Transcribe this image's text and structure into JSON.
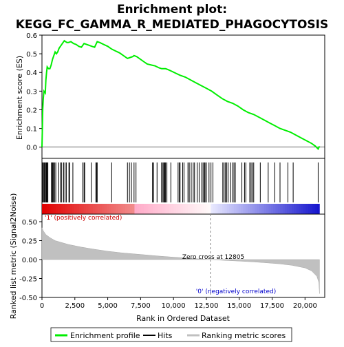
{
  "chart_data": {
    "type": "line",
    "title_line1": "Enrichment plot:",
    "title_line2": "KEGG_FC_GAMMA_R_MEDIATED_PHAGOCYTOSIS",
    "top_panel": {
      "ylabel": "Enrichment score (ES)",
      "ylim": [
        -0.06,
        0.6
      ],
      "yticks": [
        "0.0",
        "0.1",
        "0.2",
        "0.3",
        "0.4",
        "0.5",
        "0.6"
      ],
      "series_name": "Enrichment profile",
      "color": "#00ee00",
      "points": [
        [
          0,
          0.0
        ],
        [
          30,
          0.1
        ],
        [
          60,
          0.2
        ],
        [
          100,
          0.26
        ],
        [
          150,
          0.3
        ],
        [
          250,
          0.29
        ],
        [
          300,
          0.36
        ],
        [
          350,
          0.4
        ],
        [
          400,
          0.43
        ],
        [
          500,
          0.42
        ],
        [
          600,
          0.42
        ],
        [
          700,
          0.44
        ],
        [
          800,
          0.47
        ],
        [
          900,
          0.49
        ],
        [
          1000,
          0.51
        ],
        [
          1100,
          0.5
        ],
        [
          1200,
          0.51
        ],
        [
          1300,
          0.53
        ],
        [
          1400,
          0.54
        ],
        [
          1500,
          0.55
        ],
        [
          1600,
          0.56
        ],
        [
          1700,
          0.57
        ],
        [
          1800,
          0.565
        ],
        [
          1900,
          0.56
        ],
        [
          2000,
          0.56
        ],
        [
          2200,
          0.565
        ],
        [
          2400,
          0.555
        ],
        [
          2600,
          0.55
        ],
        [
          2800,
          0.54
        ],
        [
          3000,
          0.535
        ],
        [
          3200,
          0.555
        ],
        [
          3400,
          0.55
        ],
        [
          3600,
          0.545
        ],
        [
          3800,
          0.54
        ],
        [
          4000,
          0.535
        ],
        [
          4200,
          0.565
        ],
        [
          4400,
          0.56
        ],
        [
          4700,
          0.55
        ],
        [
          5000,
          0.54
        ],
        [
          5300,
          0.525
        ],
        [
          5600,
          0.515
        ],
        [
          5900,
          0.505
        ],
        [
          6200,
          0.49
        ],
        [
          6500,
          0.475
        ],
        [
          6700,
          0.48
        ],
        [
          6900,
          0.485
        ],
        [
          7000,
          0.49
        ],
        [
          7200,
          0.485
        ],
        [
          7400,
          0.475
        ],
        [
          7700,
          0.46
        ],
        [
          8000,
          0.445
        ],
        [
          8300,
          0.44
        ],
        [
          8600,
          0.435
        ],
        [
          8900,
          0.425
        ],
        [
          9100,
          0.42
        ],
        [
          9400,
          0.42
        ],
        [
          9600,
          0.415
        ],
        [
          9900,
          0.405
        ],
        [
          10200,
          0.395
        ],
        [
          10500,
          0.385
        ],
        [
          10900,
          0.375
        ],
        [
          11300,
          0.36
        ],
        [
          11700,
          0.345
        ],
        [
          12100,
          0.33
        ],
        [
          12500,
          0.315
        ],
        [
          12900,
          0.3
        ],
        [
          13300,
          0.28
        ],
        [
          13700,
          0.26
        ],
        [
          14100,
          0.245
        ],
        [
          14500,
          0.235
        ],
        [
          14900,
          0.22
        ],
        [
          15300,
          0.2
        ],
        [
          15700,
          0.185
        ],
        [
          16100,
          0.175
        ],
        [
          16500,
          0.16
        ],
        [
          16900,
          0.145
        ],
        [
          17300,
          0.13
        ],
        [
          17700,
          0.115
        ],
        [
          18100,
          0.1
        ],
        [
          18500,
          0.09
        ],
        [
          18900,
          0.08
        ],
        [
          19300,
          0.065
        ],
        [
          19700,
          0.05
        ],
        [
          20100,
          0.035
        ],
        [
          20500,
          0.02
        ],
        [
          20800,
          0.005
        ],
        [
          21000,
          -0.01
        ],
        [
          21100,
          0.005
        ]
      ]
    },
    "hits_panel": {
      "hit_positions": [
        50,
        120,
        180,
        250,
        310,
        350,
        390,
        450,
        720,
        780,
        830,
        880,
        960,
        1050,
        1280,
        1400,
        1500,
        1650,
        1750,
        1850,
        2050,
        2100,
        2350,
        3100,
        3200,
        3250,
        3750,
        4100,
        4150,
        4200,
        5300,
        6500,
        6650,
        6800,
        7000,
        7150,
        8400,
        8500,
        8750,
        9100,
        9150,
        9250,
        9300,
        9350,
        9400,
        9500,
        9800,
        10350,
        10450,
        10500,
        10700,
        10800,
        11100,
        11200,
        11350,
        11500,
        11600,
        11800,
        11950,
        12150,
        12250,
        12350,
        12400,
        12500,
        12700,
        12850,
        13000,
        13750,
        13850,
        13950,
        14050,
        14150,
        14350,
        14500,
        14600,
        14700,
        15200,
        15400,
        15500,
        15800,
        15900,
        16000,
        16100,
        16600,
        17200,
        17700,
        18100,
        18700,
        19100,
        21000
      ]
    },
    "bottom_panel": {
      "ylabel": "Ranked list metric (Signal2Noise)",
      "ylim": [
        -0.5,
        0.6
      ],
      "yticks": [
        "0.50",
        "0.25",
        "0.00",
        "-0.25",
        "-0.50"
      ],
      "ranked_metric": [
        [
          0,
          0.42
        ],
        [
          100,
          0.38
        ],
        [
          300,
          0.33
        ],
        [
          600,
          0.29
        ],
        [
          1000,
          0.25
        ],
        [
          2000,
          0.2
        ],
        [
          3000,
          0.165
        ],
        [
          4000,
          0.135
        ],
        [
          5000,
          0.11
        ],
        [
          6000,
          0.09
        ],
        [
          7000,
          0.075
        ],
        [
          8000,
          0.06
        ],
        [
          9000,
          0.045
        ],
        [
          10000,
          0.032
        ],
        [
          11000,
          0.02
        ],
        [
          12000,
          0.008
        ],
        [
          12805,
          0.0
        ],
        [
          14000,
          -0.012
        ],
        [
          15000,
          -0.02
        ],
        [
          16000,
          -0.03
        ],
        [
          17000,
          -0.042
        ],
        [
          18000,
          -0.055
        ],
        [
          19000,
          -0.075
        ],
        [
          20000,
          -0.11
        ],
        [
          20500,
          -0.15
        ],
        [
          20900,
          -0.22
        ],
        [
          21050,
          -0.3
        ],
        [
          21100,
          -0.45
        ]
      ],
      "positive_label": "'1' (positively correlated)",
      "negative_label": "'0' (negatively correlated)",
      "zero_cross_label": "Zero cross at 12805",
      "zero_cross": 12805
    },
    "xlabel": "Rank in Ordered Dataset",
    "xlim": [
      0,
      21500
    ],
    "xticks": [
      "0",
      "2,500",
      "5,000",
      "7,500",
      "10,000",
      "12,500",
      "15,000",
      "17,500",
      "20,000"
    ],
    "legend": [
      {
        "label": "Enrichment profile",
        "color": "#00ee00"
      },
      {
        "label": "Hits",
        "color": "#000000"
      },
      {
        "label": "Ranking metric scores",
        "color": "#c0c0c0"
      }
    ],
    "legend_placement": "bottom"
  }
}
